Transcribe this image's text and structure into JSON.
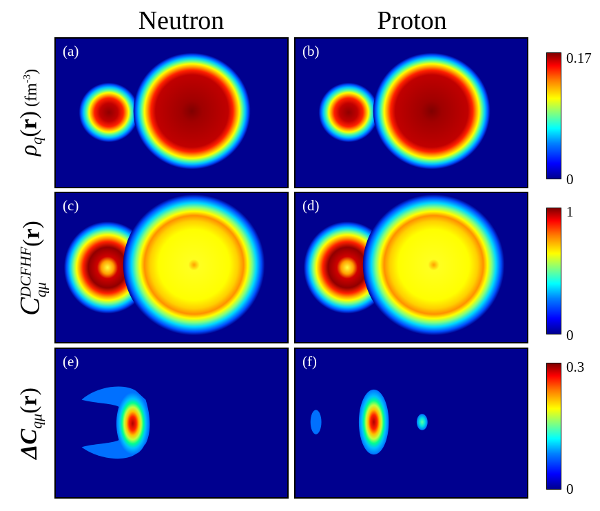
{
  "columns": {
    "left": "Neutron",
    "right": "Proton"
  },
  "panels": {
    "a": "(a)",
    "b": "(b)",
    "c": "(c)",
    "d": "(d)",
    "e": "(e)",
    "f": "(f)"
  },
  "rows": {
    "rho": {
      "symbol": "ρ",
      "sub": "q",
      "arg_open": "(",
      "arg": "r",
      "arg_close": ")",
      "unit_open": " (fm",
      "unit_exp": "-3",
      "unit_close": ")"
    },
    "c": {
      "symbol": "C",
      "sup": "DCFHF",
      "sub": "qμ",
      "arg_open": "(",
      "arg": "r",
      "arg_close": ")"
    },
    "dc": {
      "symbol": "ΔC",
      "sub": "qμ",
      "arg_open": "(",
      "arg": "r",
      "arg_close": ")"
    }
  },
  "colorbars": [
    {
      "max": "0.17",
      "min": "0"
    },
    {
      "max": "1",
      "min": "0"
    },
    {
      "max": "0.3",
      "min": "0"
    }
  ]
}
